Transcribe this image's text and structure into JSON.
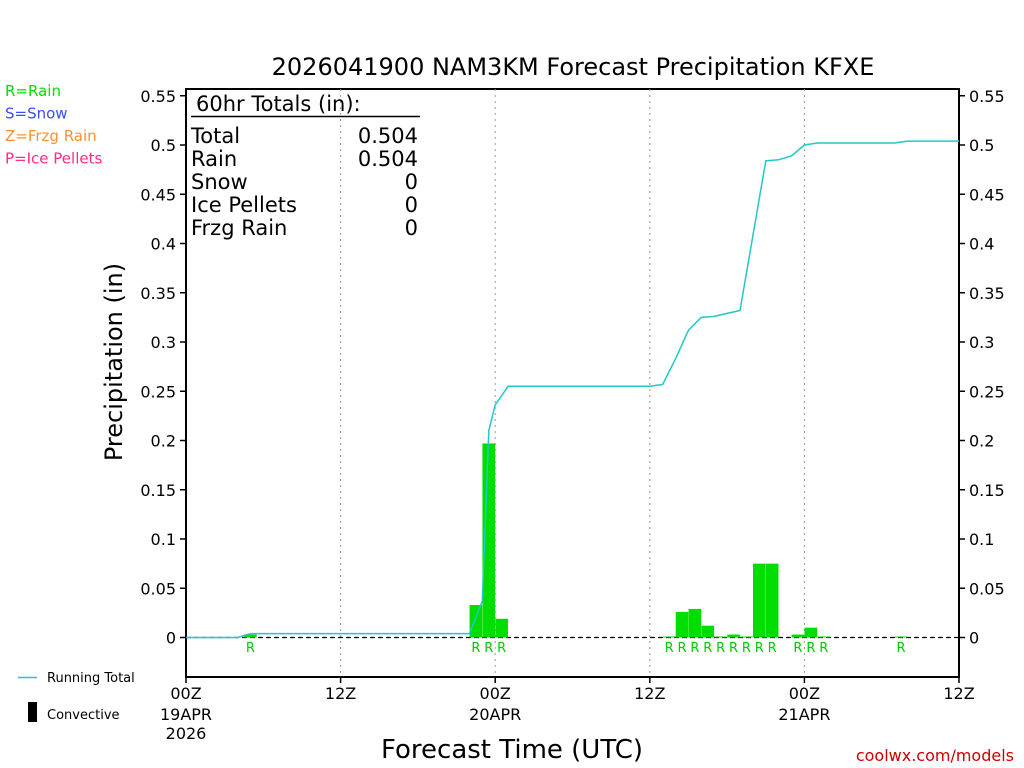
{
  "chart_data": {
    "type": "bar",
    "title": "2026041900 NAM3KM Forecast Precipitation KFXE",
    "ylabel": "Precipitation (in)",
    "xlabel": "Forecast Time (UTC)",
    "ylim": [
      -0.04,
      0.555
    ],
    "xlim_hours": [
      0,
      60
    ],
    "y_ticks": [
      "0.55",
      "0.5",
      "0.45",
      "0.4",
      "0.35",
      "0.3",
      "0.25",
      "0.2",
      "0.15",
      "0.1",
      "0.05",
      "0"
    ],
    "y_tick_values": [
      0.55,
      0.5,
      0.45,
      0.4,
      0.35,
      0.3,
      0.25,
      0.2,
      0.15,
      0.1,
      0.05,
      0
    ],
    "x_ticks": [
      {
        "hour": 0,
        "label": "00Z",
        "sub1": "19APR",
        "sub2": "2026"
      },
      {
        "hour": 12,
        "label": "12Z",
        "sub1": "",
        "sub2": ""
      },
      {
        "hour": 24,
        "label": "00Z",
        "sub1": "20APR",
        "sub2": ""
      },
      {
        "hour": 36,
        "label": "12Z",
        "sub1": "",
        "sub2": ""
      },
      {
        "hour": 48,
        "label": "00Z",
        "sub1": "21APR",
        "sub2": ""
      },
      {
        "hour": 60,
        "label": "12Z",
        "sub1": "",
        "sub2": ""
      }
    ],
    "bars": [
      {
        "hour": 5.0,
        "value": 0.003,
        "type": "R"
      },
      {
        "hour": 22.5,
        "value": 0.033,
        "type": "R"
      },
      {
        "hour": 23.5,
        "value": 0.197,
        "type": "R"
      },
      {
        "hour": 24.5,
        "value": 0.019,
        "type": "R"
      },
      {
        "hour": 37.5,
        "value": 0.001,
        "type": "R"
      },
      {
        "hour": 38.5,
        "value": 0.026,
        "type": "R"
      },
      {
        "hour": 39.5,
        "value": 0.029,
        "type": "R"
      },
      {
        "hour": 40.5,
        "value": 0.012,
        "type": "R"
      },
      {
        "hour": 41.5,
        "value": 0.001,
        "type": "R"
      },
      {
        "hour": 42.5,
        "value": 0.003,
        "type": "R"
      },
      {
        "hour": 43.5,
        "value": 0.001,
        "type": "R"
      },
      {
        "hour": 44.5,
        "value": 0.075,
        "type": "R"
      },
      {
        "hour": 45.5,
        "value": 0.075,
        "type": "R"
      },
      {
        "hour": 47.5,
        "value": 0.003,
        "type": "R"
      },
      {
        "hour": 48.5,
        "value": 0.01,
        "type": "R"
      },
      {
        "hour": 49.5,
        "value": 0.001,
        "type": "R"
      },
      {
        "hour": 55.5,
        "value": 0.001,
        "type": "R"
      }
    ],
    "running_total": {
      "hours": [
        0,
        4,
        5,
        22,
        23,
        23.5,
        24,
        25,
        36,
        37,
        38,
        39,
        40,
        41,
        42,
        43,
        45,
        46,
        47,
        48,
        49,
        50,
        53,
        55,
        56,
        57,
        60
      ],
      "values": [
        0,
        0,
        0.004,
        0.004,
        0.037,
        0.21,
        0.236,
        0.255,
        0.255,
        0.257,
        0.283,
        0.312,
        0.325,
        0.326,
        0.329,
        0.332,
        0.484,
        0.485,
        0.489,
        0.5,
        0.502,
        0.502,
        0.502,
        0.502,
        0.504,
        0.504,
        0.504
      ]
    },
    "totals_box": {
      "heading": "60hr Totals (in):",
      "rows": [
        {
          "label": "Total",
          "value": "0.504"
        },
        {
          "label": "Rain",
          "value": "0.504"
        },
        {
          "label": "Snow",
          "value": "0"
        },
        {
          "label": "Ice Pellets",
          "value": "0"
        },
        {
          "label": "Frzg Rain",
          "value": "0"
        }
      ]
    },
    "type_legend": [
      {
        "text": "R=Rain",
        "color": "#00e000"
      },
      {
        "text": "S=Snow",
        "color": "#3a4cff"
      },
      {
        "text": "Z=Frzg Rain",
        "color": "#ff9030"
      },
      {
        "text": "P=Ice Pellets",
        "color": "#ff2a8a"
      }
    ],
    "bottom_legend": {
      "running_total": "Running Total",
      "convective": "Convective"
    },
    "colors": {
      "bar": "#00dd00",
      "running_total": "#20c8c8",
      "rain_label": "#00cc00"
    }
  },
  "footer": "coolwx.com/models"
}
